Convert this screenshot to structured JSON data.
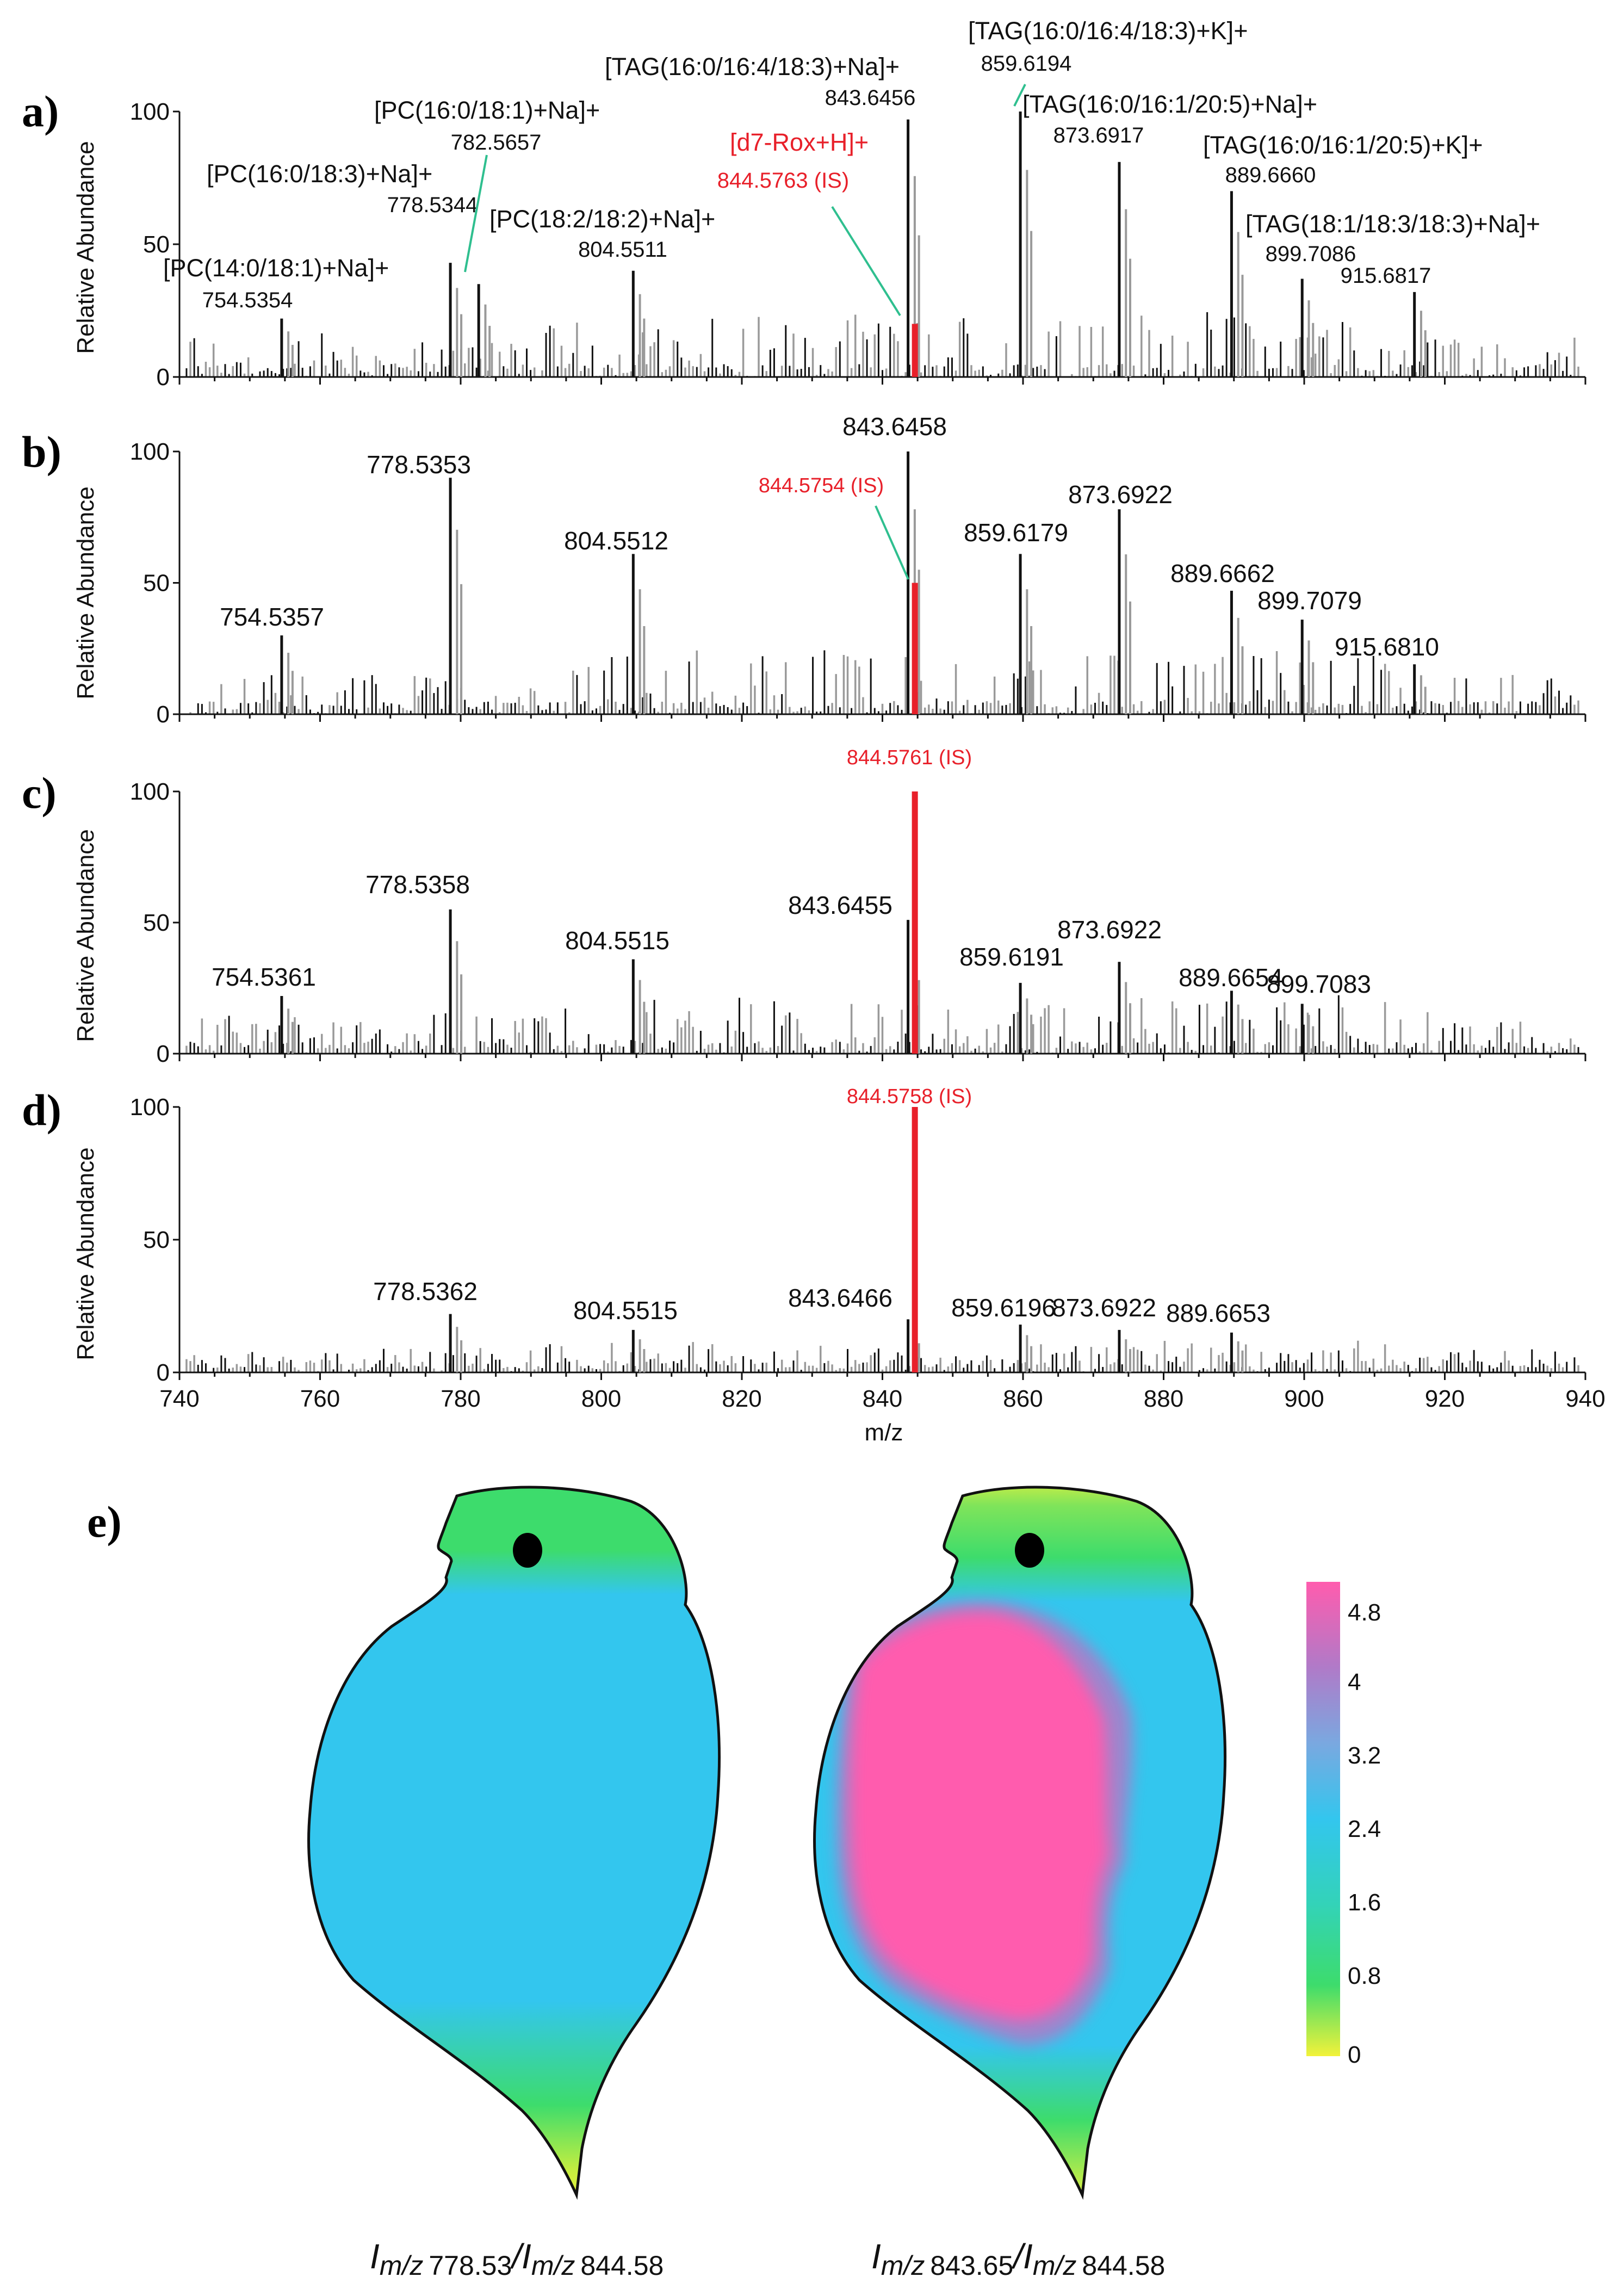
{
  "xlabel": "m/z",
  "ylabel": "Relative Abundance",
  "chart_data": [
    {
      "panel": "a)",
      "type": "bar",
      "xlim": [
        740,
        940
      ],
      "ylim": [
        0,
        100
      ],
      "y_ticks": [
        0,
        50,
        100
      ],
      "x_ticks": [
        740,
        760,
        780,
        800,
        820,
        840,
        860,
        880,
        900,
        920,
        940
      ],
      "is_peak": {
        "mz": 844.5763,
        "abundance": 20,
        "label": "844.5763 (IS)",
        "species_label": "[d7-Rox+H]+"
      },
      "peaks": [
        {
          "mz": 754.5354,
          "abundance": 22,
          "label": "754.5354",
          "annotation": "[PC(14:0/18:1)+Na]+"
        },
        {
          "mz": 778.5344,
          "abundance": 43,
          "label": "778.5344",
          "annotation": "[PC(16:0/18:3)+Na]+"
        },
        {
          "mz": 782.5657,
          "abundance": 35,
          "label": "782.5657",
          "annotation": "[PC(16:0/18:1)+Na]+"
        },
        {
          "mz": 804.5511,
          "abundance": 40,
          "label": "804.5511",
          "annotation": "[PC(18:2/18:2)+Na]+"
        },
        {
          "mz": 843.6456,
          "abundance": 97,
          "label": "843.6456",
          "annotation": "[TAG(16:0/16:4/18:3)+Na]+"
        },
        {
          "mz": 859.6194,
          "abundance": 100,
          "label": "859.6194",
          "annotation": "[TAG(16:0/16:4/18:3)+K]+"
        },
        {
          "mz": 873.6917,
          "abundance": 81,
          "label": "873.6917",
          "annotation": "[TAG(16:0/16:1/20:5)+Na]+"
        },
        {
          "mz": 889.666,
          "abundance": 70,
          "label": "889.6660",
          "annotation": "[TAG(16:0/16:1/20:5)+K]+"
        },
        {
          "mz": 899.7086,
          "abundance": 37,
          "label": "899.7086",
          "annotation": "[TAG(18:1/18:3/18:3)+Na]+"
        },
        {
          "mz": 915.6817,
          "abundance": 32,
          "label": "915.6817",
          "annotation": ""
        }
      ]
    },
    {
      "panel": "b)",
      "type": "bar",
      "xlim": [
        740,
        940
      ],
      "ylim": [
        0,
        100
      ],
      "y_ticks": [
        0,
        50,
        100
      ],
      "is_peak": {
        "mz": 844.5754,
        "abundance": 50,
        "label": "844.5754 (IS)"
      },
      "peaks": [
        {
          "mz": 754.5357,
          "abundance": 30,
          "label": "754.5357"
        },
        {
          "mz": 778.5353,
          "abundance": 90,
          "label": "778.5353"
        },
        {
          "mz": 804.5512,
          "abundance": 61,
          "label": "804.5512"
        },
        {
          "mz": 843.6458,
          "abundance": 100,
          "label": "843.6458"
        },
        {
          "mz": 859.6179,
          "abundance": 61,
          "label": "859.6179"
        },
        {
          "mz": 873.6922,
          "abundance": 78,
          "label": "873.6922"
        },
        {
          "mz": 889.6662,
          "abundance": 47,
          "label": "889.6662"
        },
        {
          "mz": 899.7079,
          "abundance": 36,
          "label": "899.7079"
        },
        {
          "mz": 915.681,
          "abundance": 19,
          "label": "915.6810"
        }
      ]
    },
    {
      "panel": "c)",
      "type": "bar",
      "xlim": [
        740,
        940
      ],
      "ylim": [
        0,
        100
      ],
      "y_ticks": [
        0,
        50,
        100
      ],
      "is_peak": {
        "mz": 844.5761,
        "abundance": 100,
        "label": "844.5761 (IS)"
      },
      "peaks": [
        {
          "mz": 754.5361,
          "abundance": 22,
          "label": "754.5361"
        },
        {
          "mz": 778.5358,
          "abundance": 55,
          "label": "778.5358"
        },
        {
          "mz": 804.5515,
          "abundance": 36,
          "label": "804.5515"
        },
        {
          "mz": 843.6455,
          "abundance": 51,
          "label": "843.6455"
        },
        {
          "mz": 859.6191,
          "abundance": 27,
          "label": "859.6191"
        },
        {
          "mz": 873.6922,
          "abundance": 35,
          "label": "873.6922"
        },
        {
          "mz": 889.6654,
          "abundance": 24,
          "label": "889.6654"
        },
        {
          "mz": 899.7083,
          "abundance": 19,
          "label": "899.7083"
        }
      ]
    },
    {
      "panel": "d)",
      "type": "bar",
      "xlim": [
        740,
        940
      ],
      "ylim": [
        0,
        100
      ],
      "y_ticks": [
        0,
        50,
        100
      ],
      "is_peak": {
        "mz": 844.5758,
        "abundance": 100,
        "label": "844.5758 (IS)"
      },
      "peaks": [
        {
          "mz": 778.5362,
          "abundance": 22,
          "label": "778.5362"
        },
        {
          "mz": 804.5515,
          "abundance": 16,
          "label": "804.5515"
        },
        {
          "mz": 843.6466,
          "abundance": 20,
          "label": "843.6466"
        },
        {
          "mz": 859.6196,
          "abundance": 18,
          "label": "859.6196"
        },
        {
          "mz": 873.6922,
          "abundance": 16,
          "label": "873.6922"
        },
        {
          "mz": 889.6653,
          "abundance": 15,
          "label": "889.6653"
        }
      ]
    },
    {
      "panel": "e)",
      "type": "heatmap",
      "colorbar": {
        "ticks": [
          "4.8",
          "4",
          "3.2",
          "2.4",
          "1.6",
          "0.8",
          "0"
        ],
        "min": 0,
        "max": 5
      },
      "images": [
        {
          "caption": "I m/z 778.53/I m/z 844.58",
          "ratio_num": "778.53",
          "ratio_den": "844.58",
          "body_level": 2.6,
          "head_level": 1.0,
          "tip_level": 0.6
        },
        {
          "caption": "I m/z 843.65/I m/z 844.58",
          "ratio_num": "843.65",
          "ratio_den": "844.58",
          "body_level": 4.8,
          "rim_level": 2.6,
          "head_level": 0.8,
          "tip_level": 0.3
        }
      ]
    }
  ],
  "colors": {
    "is_red": "#e8202a",
    "leader_green": "#2fbf8f",
    "peak_black": "#111111",
    "peak_grey": "#9a9a9a",
    "cyan": "#33c6ee",
    "green": "#3ddc6c",
    "yellow": "#f2f23a",
    "magenta": "#ff5cae",
    "purple": "#9b7ac8"
  }
}
